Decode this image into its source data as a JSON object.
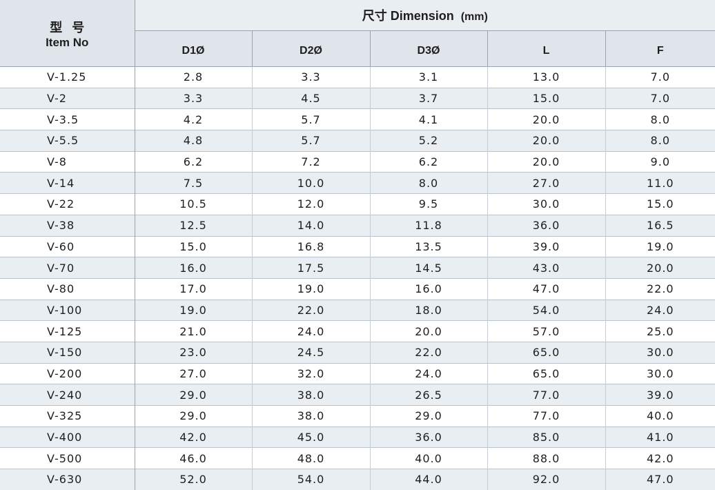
{
  "header": {
    "item_cn": "型号",
    "item_en": "Item No",
    "dimension_label": "尺寸 Dimension",
    "dimension_unit": "(mm)",
    "columns": [
      "D1Ø",
      "D2Ø",
      "D3Ø",
      "L",
      "F"
    ]
  },
  "rows": [
    [
      "V-1.25",
      "2.8",
      "3.3",
      "3.1",
      "13.0",
      "7.0"
    ],
    [
      "V-2",
      "3.3",
      "4.5",
      "3.7",
      "15.0",
      "7.0"
    ],
    [
      "V-3.5",
      "4.2",
      "5.7",
      "4.1",
      "20.0",
      "8.0"
    ],
    [
      "V-5.5",
      "4.8",
      "5.7",
      "5.2",
      "20.0",
      "8.0"
    ],
    [
      "V-8",
      "6.2",
      "7.2",
      "6.2",
      "20.0",
      "9.0"
    ],
    [
      "V-14",
      "7.5",
      "10.0",
      "8.0",
      "27.0",
      "11.0"
    ],
    [
      "V-22",
      "10.5",
      "12.0",
      "9.5",
      "30.0",
      "15.0"
    ],
    [
      "V-38",
      "12.5",
      "14.0",
      "11.8",
      "36.0",
      "16.5"
    ],
    [
      "V-60",
      "15.0",
      "16.8",
      "13.5",
      "39.0",
      "19.0"
    ],
    [
      "V-70",
      "16.0",
      "17.5",
      "14.5",
      "43.0",
      "20.0"
    ],
    [
      "V-80",
      "17.0",
      "19.0",
      "16.0",
      "47.0",
      "22.0"
    ],
    [
      "V-100",
      "19.0",
      "22.0",
      "18.0",
      "54.0",
      "24.0"
    ],
    [
      "V-125",
      "21.0",
      "24.0",
      "20.0",
      "57.0",
      "25.0"
    ],
    [
      "V-150",
      "23.0",
      "24.5",
      "22.0",
      "65.0",
      "30.0"
    ],
    [
      "V-200",
      "27.0",
      "32.0",
      "24.0",
      "65.0",
      "30.0"
    ],
    [
      "V-240",
      "29.0",
      "38.0",
      "26.5",
      "77.0",
      "39.0"
    ],
    [
      "V-325",
      "29.0",
      "38.0",
      "29.0",
      "77.0",
      "40.0"
    ],
    [
      "V-400",
      "42.0",
      "45.0",
      "36.0",
      "85.0",
      "41.0"
    ],
    [
      "V-500",
      "46.0",
      "48.0",
      "40.0",
      "88.0",
      "42.0"
    ],
    [
      "V-630",
      "52.0",
      "54.0",
      "44.0",
      "92.0",
      "47.0"
    ]
  ],
  "colors": {
    "header_bg": "#dfe5eb",
    "alt_row_bg": "#e9eef2",
    "border": "#98a3ad"
  }
}
